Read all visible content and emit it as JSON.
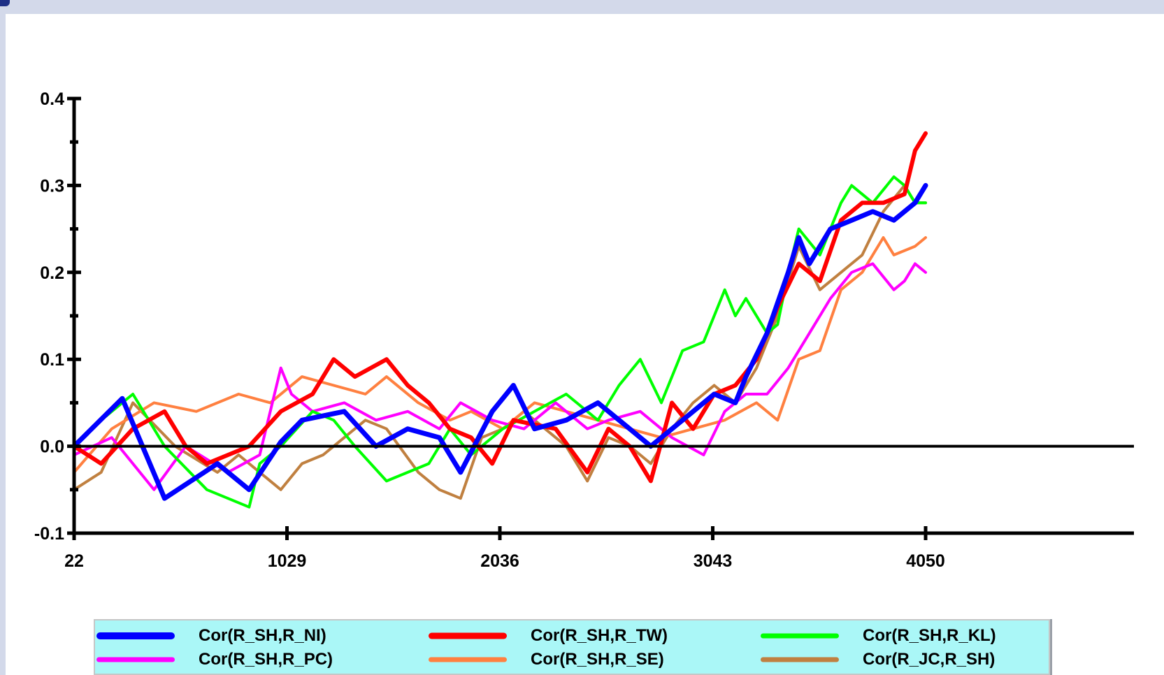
{
  "chart_data": {
    "type": "line",
    "title": "",
    "xlabel": "",
    "ylabel": "",
    "xlim": [
      22,
      5050
    ],
    "ylim": [
      -0.1,
      0.4
    ],
    "x_ticks": [
      22,
      1029,
      2036,
      3043,
      4050
    ],
    "x_tick_labels": [
      "22",
      "1029",
      "2036",
      "3043",
      "4050"
    ],
    "y_ticks": [
      -0.1,
      0.0,
      0.1,
      0.2,
      0.3,
      0.4
    ],
    "y_tick_labels": [
      "-0.1",
      "0.0",
      "0.1",
      "0.2",
      "0.3",
      "0.4"
    ],
    "zero_line": true,
    "grid": false,
    "legend_position": "bottom",
    "series": [
      {
        "name": "Cor(R_SH,R_NI)",
        "color": "#0000ff",
        "width": 7,
        "x": [
          22,
          250,
          450,
          700,
          850,
          1000,
          1100,
          1300,
          1450,
          1600,
          1750,
          1850,
          2000,
          2100,
          2200,
          2350,
          2500,
          2650,
          2750,
          2900,
          3050,
          3150,
          3200,
          3300,
          3400,
          3450,
          3500,
          3600,
          3700,
          3800,
          3900,
          4000,
          4050
        ],
        "y": [
          0.0,
          0.055,
          -0.06,
          -0.02,
          -0.05,
          0.005,
          0.03,
          0.04,
          0.0,
          0.02,
          0.01,
          -0.03,
          0.04,
          0.07,
          0.02,
          0.03,
          0.05,
          0.02,
          0.0,
          0.03,
          0.06,
          0.05,
          0.08,
          0.13,
          0.2,
          0.24,
          0.21,
          0.25,
          0.26,
          0.27,
          0.26,
          0.28,
          0.3
        ]
      },
      {
        "name": "Cor(R_SH,R_TW)",
        "color": "#ff0000",
        "width": 6,
        "x": [
          22,
          150,
          300,
          450,
          550,
          650,
          850,
          1000,
          1150,
          1250,
          1350,
          1500,
          1600,
          1700,
          1800,
          1900,
          2000,
          2100,
          2300,
          2450,
          2550,
          2650,
          2750,
          2850,
          2950,
          3050,
          3150,
          3250,
          3350,
          3450,
          3550,
          3650,
          3750,
          3850,
          3950,
          4000,
          4050
        ],
        "y": [
          0.0,
          -0.02,
          0.02,
          0.04,
          0.0,
          -0.02,
          0.0,
          0.04,
          0.06,
          0.1,
          0.08,
          0.1,
          0.07,
          0.05,
          0.02,
          0.01,
          -0.02,
          0.03,
          0.02,
          -0.03,
          0.02,
          0.0,
          -0.04,
          0.05,
          0.02,
          0.06,
          0.07,
          0.1,
          0.16,
          0.21,
          0.19,
          0.26,
          0.28,
          0.28,
          0.29,
          0.34,
          0.36
        ]
      },
      {
        "name": "Cor(R_SH,R_KL)",
        "color": "#00ff00",
        "width": 4,
        "x": [
          22,
          150,
          300,
          450,
          650,
          850,
          900,
          1000,
          1150,
          1250,
          1350,
          1500,
          1700,
          1800,
          1900,
          2050,
          2200,
          2350,
          2500,
          2600,
          2700,
          2800,
          2900,
          3000,
          3100,
          3150,
          3200,
          3300,
          3350,
          3400,
          3450,
          3550,
          3650,
          3700,
          3800,
          3900,
          3950,
          4000,
          4050
        ],
        "y": [
          0.0,
          0.03,
          0.06,
          0.0,
          -0.05,
          -0.07,
          -0.02,
          0.0,
          0.04,
          0.03,
          0.0,
          -0.04,
          -0.02,
          0.02,
          -0.01,
          0.02,
          0.04,
          0.06,
          0.03,
          0.07,
          0.1,
          0.05,
          0.11,
          0.12,
          0.18,
          0.15,
          0.17,
          0.13,
          0.14,
          0.2,
          0.25,
          0.22,
          0.28,
          0.3,
          0.28,
          0.31,
          0.3,
          0.28,
          0.28
        ]
      },
      {
        "name": "Cor(R_SH,R_PC)",
        "color": "#ff00ff",
        "width": 4,
        "x": [
          22,
          200,
          400,
          550,
          750,
          900,
          1000,
          1050,
          1150,
          1300,
          1450,
          1600,
          1750,
          1850,
          2000,
          2150,
          2300,
          2450,
          2550,
          2700,
          2850,
          3000,
          3100,
          3200,
          3300,
          3400,
          3500,
          3600,
          3700,
          3800,
          3900,
          3950,
          4000,
          4050
        ],
        "y": [
          -0.01,
          0.01,
          -0.05,
          0.0,
          -0.03,
          -0.01,
          0.09,
          0.06,
          0.04,
          0.05,
          0.03,
          0.04,
          0.02,
          0.05,
          0.03,
          0.02,
          0.05,
          0.02,
          0.03,
          0.04,
          0.01,
          -0.01,
          0.04,
          0.06,
          0.06,
          0.09,
          0.13,
          0.17,
          0.2,
          0.21,
          0.18,
          0.19,
          0.21,
          0.2
        ]
      },
      {
        "name": "Cor(R_SH,R_SE)",
        "color": "#ff8040",
        "width": 4,
        "x": [
          22,
          200,
          400,
          600,
          800,
          950,
          1100,
          1250,
          1400,
          1500,
          1650,
          1800,
          1900,
          2050,
          2200,
          2350,
          2500,
          2650,
          2800,
          2950,
          3100,
          3250,
          3350,
          3450,
          3550,
          3650,
          3750,
          3850,
          3900,
          4000,
          4050
        ],
        "y": [
          -0.03,
          0.02,
          0.05,
          0.04,
          0.06,
          0.05,
          0.08,
          0.07,
          0.06,
          0.08,
          0.05,
          0.03,
          0.04,
          0.02,
          0.05,
          0.04,
          0.03,
          0.02,
          0.01,
          0.02,
          0.03,
          0.05,
          0.03,
          0.1,
          0.11,
          0.18,
          0.2,
          0.24,
          0.22,
          0.23,
          0.24
        ]
      },
      {
        "name": "Cor(R_JC,R_SH)",
        "color": "#c08040",
        "width": 4,
        "x": [
          22,
          150,
          300,
          500,
          700,
          800,
          900,
          1000,
          1100,
          1200,
          1300,
          1400,
          1500,
          1650,
          1750,
          1850,
          1950,
          2050,
          2150,
          2250,
          2350,
          2450,
          2550,
          2650,
          2750,
          2850,
          2950,
          3050,
          3150,
          3250,
          3350,
          3450,
          3550,
          3650,
          3750,
          3850,
          3950,
          4000,
          4050
        ],
        "y": [
          -0.05,
          -0.03,
          0.05,
          0.0,
          -0.03,
          -0.01,
          -0.03,
          -0.05,
          -0.02,
          -0.01,
          0.01,
          0.03,
          0.02,
          -0.03,
          -0.05,
          -0.06,
          0.01,
          0.02,
          0.04,
          0.02,
          0.0,
          -0.04,
          0.01,
          0.0,
          -0.02,
          0.02,
          0.05,
          0.07,
          0.05,
          0.09,
          0.15,
          0.23,
          0.18,
          0.2,
          0.22,
          0.27,
          0.3,
          0.28,
          0.28
        ]
      }
    ]
  }
}
